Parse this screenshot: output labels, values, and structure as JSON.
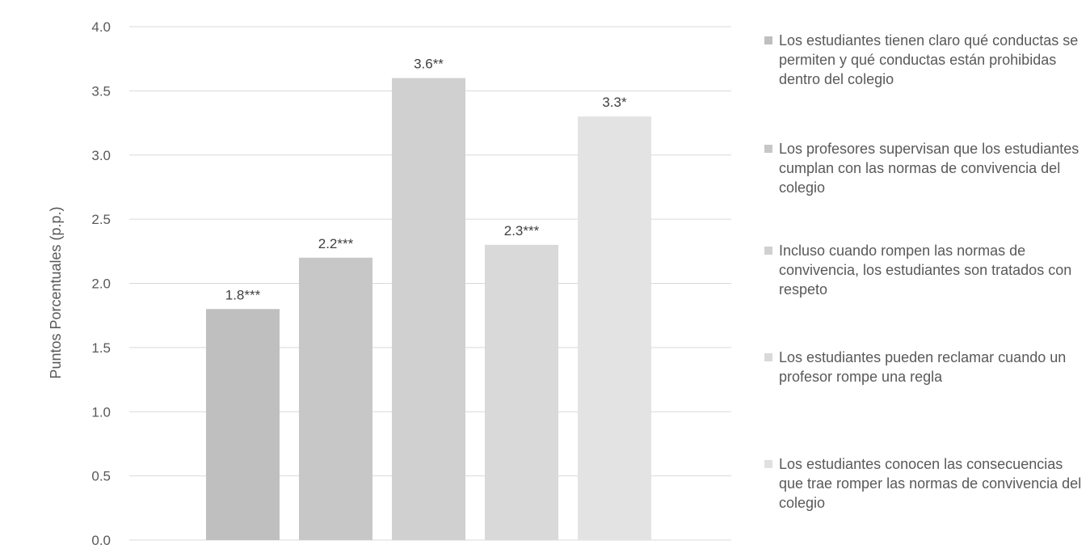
{
  "chart_data": {
    "type": "bar",
    "title": "",
    "xlabel": "",
    "ylabel": "Puntos Porcentuales (p.p.)",
    "ylim": [
      0,
      4.0
    ],
    "yticks": [
      "0.0",
      "0.5",
      "1.0",
      "1.5",
      "2.0",
      "2.5",
      "3.0",
      "3.5",
      "4.0"
    ],
    "grid": true,
    "legend_position": "right",
    "series": [
      {
        "name": "Los estudiantes tienen claro qué conductas se permiten y qué conductas están prohibidas dentro del colegio",
        "value": 1.8,
        "label": "1.8***",
        "color": "#bfbfbf"
      },
      {
        "name": "Los profesores supervisan que los estudiantes cumplan con las normas de convivencia del colegio",
        "value": 2.2,
        "label": "2.2***",
        "color": "#c7c7c7"
      },
      {
        "name": "Incluso cuando rompen las normas de convivencia, los estudiantes son tratados con respeto",
        "value": 3.6,
        "label": "3.6**",
        "color": "#d0d0d0"
      },
      {
        "name": "Los estudiantes pueden reclamar cuando un profesor rompe una regla",
        "value": 2.3,
        "label": "2.3***",
        "color": "#d9d9d9"
      },
      {
        "name": "Los estudiantes conocen las consecuencias que trae romper las normas de convivencia del colegio",
        "value": 3.3,
        "label": "3.3*",
        "color": "#e3e3e3"
      }
    ]
  }
}
